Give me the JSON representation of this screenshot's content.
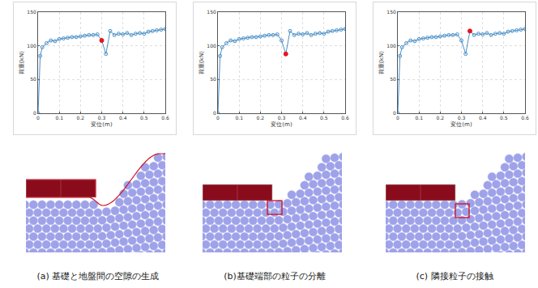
{
  "chart_data": [
    {
      "type": "line",
      "x": [
        0,
        0.01,
        0.02,
        0.04,
        0.06,
        0.08,
        0.1,
        0.12,
        0.14,
        0.16,
        0.18,
        0.2,
        0.22,
        0.24,
        0.26,
        0.28,
        0.3,
        0.32,
        0.34,
        0.36,
        0.38,
        0.4,
        0.42,
        0.44,
        0.46,
        0.48,
        0.5,
        0.52,
        0.54,
        0.56,
        0.58,
        0.6
      ],
      "series": [
        {
          "color": "#4a90c8",
          "marker": "circle-open",
          "values": [
            0,
            85,
            98,
            104,
            108,
            107,
            110,
            111,
            112,
            113,
            113,
            114,
            115,
            116,
            116,
            117,
            108,
            88,
            122,
            116,
            118,
            117,
            119,
            116,
            118,
            119,
            118,
            121,
            122,
            123,
            124,
            125
          ]
        },
        {
          "color": "#e8141e",
          "marker": "circle",
          "x": [
            0.3
          ],
          "values": [
            108
          ]
        }
      ],
      "xlabel": "変位(m)",
      "ylabel": "荷重(kN)",
      "xlim": [
        0,
        0.6
      ],
      "ylim": [
        0,
        150
      ],
      "xticks": [
        0,
        0.1,
        0.2,
        0.3,
        0.4,
        0.5,
        0.6
      ],
      "yticks": [
        0,
        50,
        100,
        150
      ],
      "grid": true
    },
    {
      "type": "line",
      "x": [
        0,
        0.01,
        0.02,
        0.04,
        0.06,
        0.08,
        0.1,
        0.12,
        0.14,
        0.16,
        0.18,
        0.2,
        0.22,
        0.24,
        0.26,
        0.28,
        0.3,
        0.32,
        0.34,
        0.36,
        0.38,
        0.4,
        0.42,
        0.44,
        0.46,
        0.48,
        0.5,
        0.52,
        0.54,
        0.56,
        0.58,
        0.6
      ],
      "series": [
        {
          "color": "#4a90c8",
          "marker": "circle-open",
          "values": [
            0,
            85,
            98,
            104,
            108,
            107,
            110,
            111,
            112,
            113,
            113,
            114,
            115,
            116,
            116,
            117,
            108,
            88,
            122,
            116,
            118,
            117,
            119,
            116,
            118,
            119,
            118,
            121,
            122,
            123,
            124,
            125
          ]
        },
        {
          "color": "#e8141e",
          "marker": "circle",
          "x": [
            0.32
          ],
          "values": [
            88
          ]
        }
      ],
      "xlabel": "変位(m)",
      "ylabel": "荷重(kN)",
      "xlim": [
        0,
        0.6
      ],
      "ylim": [
        0,
        150
      ],
      "xticks": [
        0,
        0.1,
        0.2,
        0.3,
        0.4,
        0.5,
        0.6
      ],
      "yticks": [
        0,
        50,
        100,
        150
      ],
      "grid": true
    },
    {
      "type": "line",
      "x": [
        0,
        0.01,
        0.02,
        0.04,
        0.06,
        0.08,
        0.1,
        0.12,
        0.14,
        0.16,
        0.18,
        0.2,
        0.22,
        0.24,
        0.26,
        0.28,
        0.3,
        0.32,
        0.34,
        0.36,
        0.38,
        0.4,
        0.42,
        0.44,
        0.46,
        0.48,
        0.5,
        0.52,
        0.54,
        0.56,
        0.58,
        0.6
      ],
      "series": [
        {
          "color": "#4a90c8",
          "marker": "circle-open",
          "values": [
            0,
            85,
            98,
            104,
            108,
            107,
            110,
            111,
            112,
            113,
            113,
            114,
            115,
            116,
            116,
            117,
            108,
            88,
            122,
            116,
            118,
            117,
            119,
            116,
            118,
            119,
            118,
            121,
            122,
            123,
            124,
            125
          ]
        },
        {
          "color": "#e8141e",
          "marker": "circle",
          "x": [
            0.34
          ],
          "values": [
            122
          ]
        }
      ],
      "xlabel": "変位(m)",
      "ylabel": "荷重(kN)",
      "xlim": [
        0,
        0.6
      ],
      "ylim": [
        0,
        150
      ],
      "xticks": [
        0,
        0.1,
        0.2,
        0.3,
        0.4,
        0.5,
        0.6
      ],
      "yticks": [
        0,
        50,
        100,
        150
      ],
      "grid": true
    }
  ],
  "captions": [
    "(a) 基礎と地盤間の空隙の生成",
    "(b)基礎端部の粒子の分離",
    "(c) 隣接粒子の接触"
  ]
}
